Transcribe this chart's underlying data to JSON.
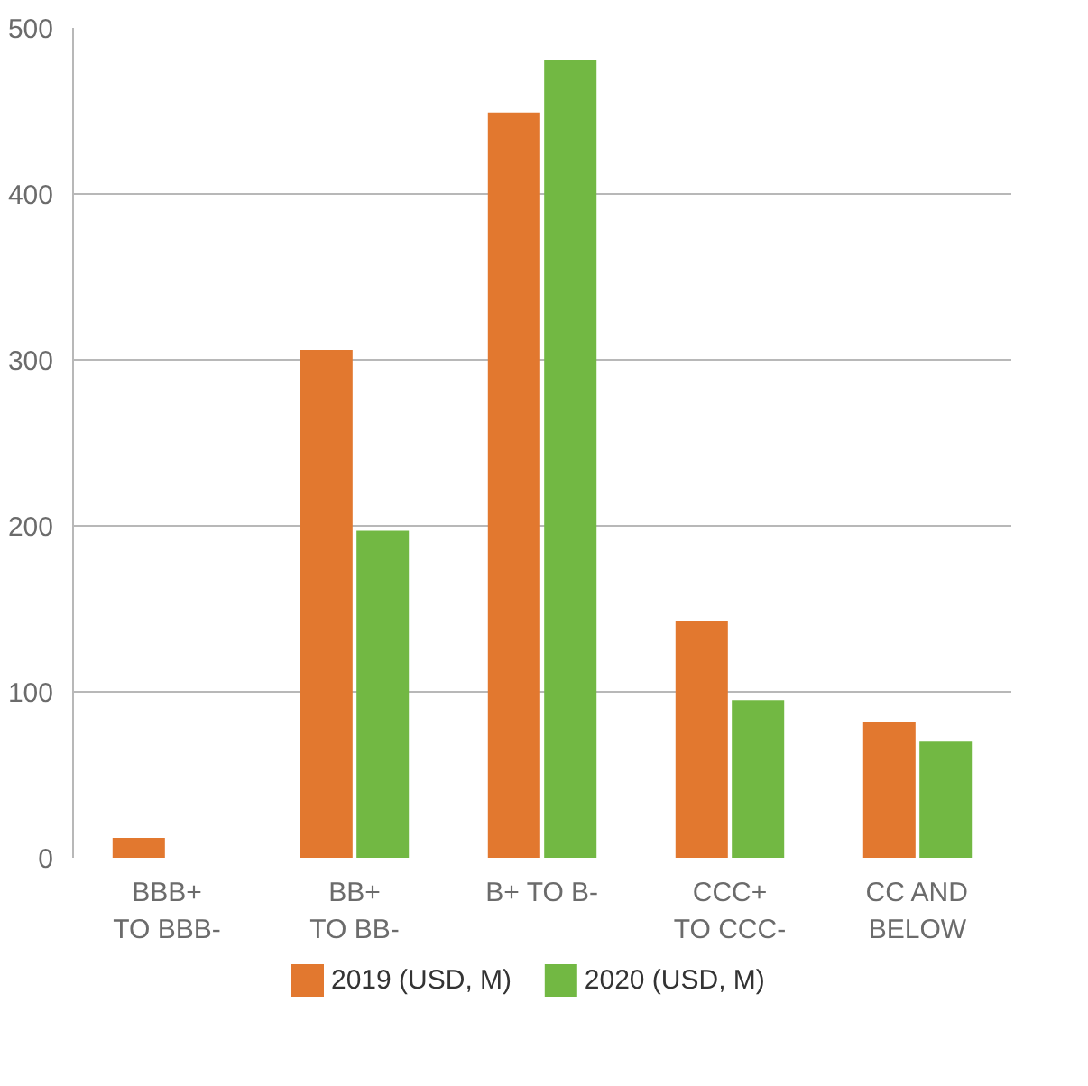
{
  "chart_data": {
    "type": "bar",
    "categories": [
      "BBB+\nTO BBB-",
      "BB+\nTO BB-",
      "B+ TO B-",
      "CCC+\nTO CCC-",
      "CC AND\nBELOW"
    ],
    "series": [
      {
        "name": "2019 (USD, M)",
        "color": "#e2782f",
        "values": [
          12,
          306,
          449,
          143,
          82
        ]
      },
      {
        "name": "2020 (USD, M)",
        "color": "#72b843",
        "values": [
          null,
          197,
          481,
          95,
          70
        ]
      }
    ],
    "ylim": [
      0,
      500
    ],
    "yticks": [
      0,
      100,
      200,
      300,
      400,
      500
    ],
    "grid": "y",
    "legend": "bottom"
  }
}
